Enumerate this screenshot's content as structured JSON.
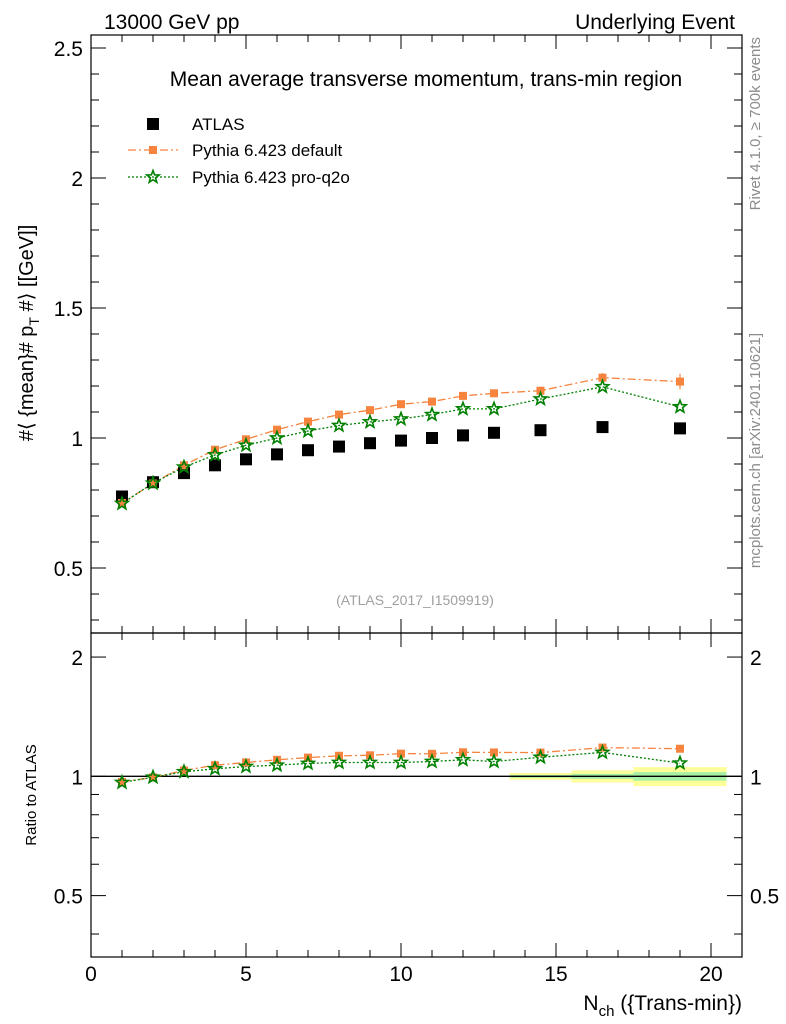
{
  "header": {
    "energy_label": "13000 GeV pp",
    "process_label": "Underlying Event"
  },
  "side_labels": {
    "rivet": "Rivet 4.1.0, ≥ 700k events",
    "mcplots": "mcplots.cern.ch [arXiv:2401.10621]"
  },
  "chart_data": [
    {
      "type": "scatter",
      "title": "Mean average transverse momentum, trans-min region",
      "watermark": "(ATLAS_2017_I1509919)",
      "ylabel": "#⟨ {mean}# p_T #⟩ [[GeV]]",
      "ylabel_main": "#⟨ {mean}# p",
      "ylabel_sub": "T",
      "ylabel_tail": " #⟩ [[GeV]]",
      "xlim": [
        0,
        21
      ],
      "ylim": [
        0.25,
        2.55
      ],
      "yticks": [
        0.5,
        1,
        1.5,
        2,
        2.5
      ],
      "ytick_labels": [
        "0.5",
        "1",
        "1.5",
        "2",
        "2.5"
      ],
      "legend_position": "top-left",
      "x": [
        1,
        2,
        3,
        4,
        5,
        6,
        7,
        8,
        9,
        10,
        11,
        12,
        13,
        14.5,
        16.5,
        19
      ],
      "series": [
        {
          "name": "ATLAS",
          "color": "#000000",
          "marker": "square",
          "values": [
            0.775,
            0.83,
            0.865,
            0.895,
            0.918,
            0.937,
            0.953,
            0.967,
            0.98,
            0.99,
            1.0,
            1.01,
            1.02,
            1.03,
            1.042,
            1.037
          ]
        },
        {
          "name": "Pythia 6.423 default",
          "color": "#f6843e",
          "marker": "square-small",
          "line": "dash-dot",
          "values": [
            0.75,
            0.825,
            0.895,
            0.955,
            0.995,
            1.032,
            1.063,
            1.09,
            1.107,
            1.13,
            1.14,
            1.162,
            1.172,
            1.182,
            1.232,
            1.217
          ]
        },
        {
          "name": "Pythia 6.423 pro-q2o",
          "color": "#008000",
          "marker": "star",
          "line": "dotted",
          "values": [
            0.748,
            0.826,
            0.888,
            0.935,
            0.972,
            1.0,
            1.027,
            1.048,
            1.062,
            1.073,
            1.09,
            1.112,
            1.112,
            1.15,
            1.197,
            1.12
          ]
        }
      ]
    },
    {
      "type": "scatter",
      "ylabel": "Ratio to ATLAS",
      "xlabel": "N_ch ({Trans-min})",
      "xlabel_main": "N",
      "xlabel_sub": "ch",
      "xlabel_tail": " ({Trans-min})",
      "xlim": [
        0,
        21
      ],
      "ylim": [
        0.35,
        2.3
      ],
      "xticks": [
        0,
        5,
        10,
        15,
        20
      ],
      "xtick_labels": [
        "0",
        "5",
        "10",
        "15",
        "20"
      ],
      "yticks": [
        0.5,
        1,
        2
      ],
      "ytick_labels": [
        "0.5",
        "1",
        "2"
      ],
      "x": [
        1,
        2,
        3,
        4,
        5,
        6,
        7,
        8,
        9,
        10,
        11,
        12,
        13,
        14.5,
        16.5,
        19
      ],
      "uncertainty_bands": [
        {
          "x_range": [
            13.5,
            15.5
          ],
          "stat": 0.008,
          "total": 0.02
        },
        {
          "x_range": [
            15.5,
            17.5
          ],
          "stat": 0.015,
          "total": 0.035
        },
        {
          "x_range": [
            17.5,
            20.5
          ],
          "stat": 0.025,
          "total": 0.055
        }
      ],
      "series": [
        {
          "name": "Pythia 6.423 default",
          "color": "#f6843e",
          "values": [
            0.968,
            0.994,
            1.035,
            1.067,
            1.084,
            1.101,
            1.115,
            1.127,
            1.13,
            1.141,
            1.14,
            1.15,
            1.149,
            1.148,
            1.182,
            1.174
          ]
        },
        {
          "name": "Pythia 6.423 pro-q2o",
          "color": "#008000",
          "values": [
            0.965,
            0.995,
            1.027,
            1.045,
            1.059,
            1.067,
            1.078,
            1.084,
            1.084,
            1.084,
            1.09,
            1.101,
            1.09,
            1.117,
            1.149,
            1.08
          ]
        }
      ]
    }
  ]
}
